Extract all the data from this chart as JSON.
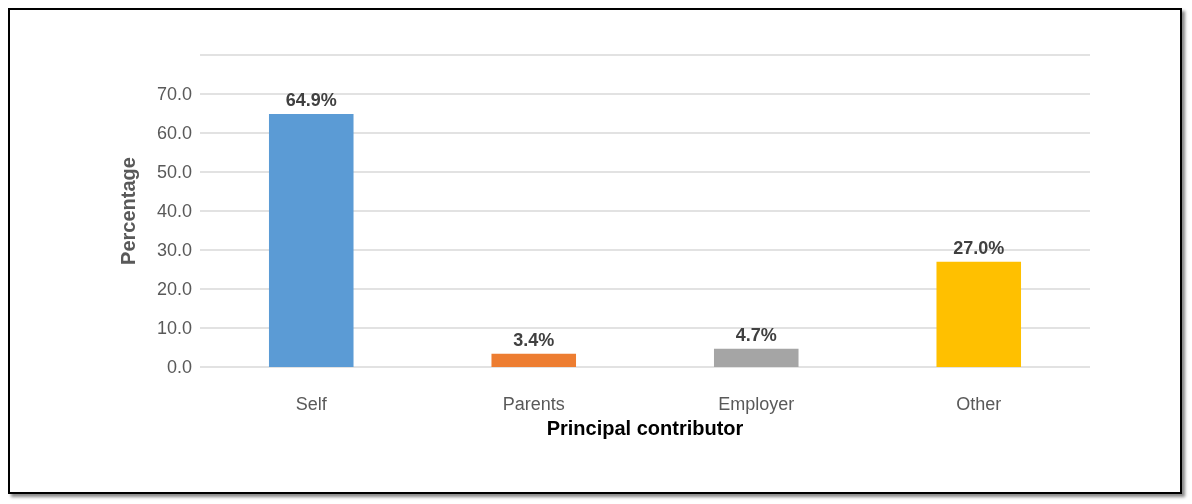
{
  "chart_data": {
    "type": "bar",
    "xlabel": "Principal contributor",
    "ylabel": "Percentage",
    "categories": [
      "Self",
      "Parents",
      "Employer",
      "Other"
    ],
    "values": [
      64.9,
      3.4,
      4.7,
      27.0
    ],
    "colors": [
      "#5b9bd5",
      "#ed7d31",
      "#a5a5a5",
      "#ffc000"
    ],
    "value_labels": [
      "64.9%",
      "3.4%",
      "4.7%",
      "27.0%"
    ],
    "ylim": [
      0,
      80
    ],
    "yticks": [
      {
        "value": 0,
        "label": "0.0"
      },
      {
        "value": 10,
        "label": "10.0"
      },
      {
        "value": 20,
        "label": "20.0"
      },
      {
        "value": 30,
        "label": "30.0"
      },
      {
        "value": 40,
        "label": "40.0"
      },
      {
        "value": 50,
        "label": "50.0"
      },
      {
        "value": 60,
        "label": "60.0"
      },
      {
        "value": 70,
        "label": "70.0"
      },
      {
        "value": 80,
        "label": null
      }
    ],
    "grid": true
  }
}
